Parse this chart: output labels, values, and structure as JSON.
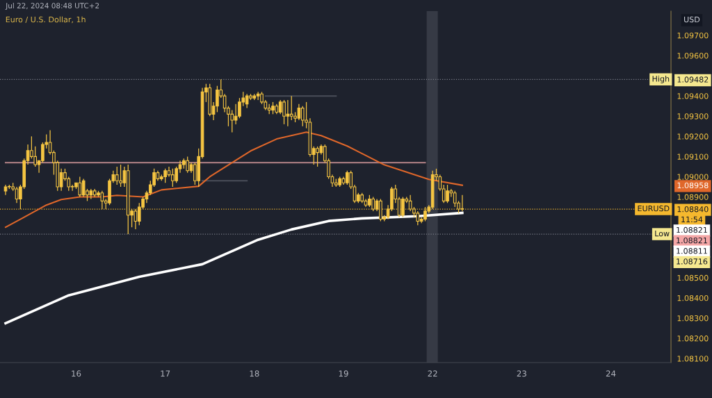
{
  "chart_data": {
    "type": "candlestick",
    "title": "Euro / U.S. Dollar, 1h",
    "subtitle": "Jul 22, 2024 08:48 UTC+2",
    "ylabel": "USD",
    "color": "#f5c542",
    "categories": [
      null,
      null,
      null,
      null,
      null,
      null,
      null,
      null,
      null,
      null,
      null,
      null,
      null,
      null,
      null,
      null,
      null,
      null,
      null,
      "16",
      null,
      null,
      null,
      null,
      null,
      null,
      null,
      null,
      null,
      null,
      null,
      null,
      null,
      null,
      null,
      null,
      null,
      null,
      null,
      null,
      null,
      null,
      null,
      "17",
      null,
      null,
      null,
      null,
      null,
      null,
      null,
      null,
      null,
      null,
      null,
      null,
      null,
      null,
      null,
      null,
      null,
      null,
      null,
      null,
      null,
      null,
      null,
      "18",
      null,
      null,
      null,
      null,
      null,
      null,
      null,
      null,
      null,
      null,
      null,
      null,
      null,
      null,
      null,
      null,
      null,
      null,
      null,
      null,
      null,
      null,
      null,
      "19",
      null,
      null,
      null,
      null,
      null,
      null,
      null,
      null,
      null,
      null,
      null,
      null,
      null,
      null,
      null,
      null,
      null,
      null,
      null,
      null,
      null,
      null,
      null,
      "22",
      null,
      null,
      null,
      null,
      null,
      null,
      null,
      null,
      null,
      null,
      null,
      null,
      null,
      null,
      null,
      null,
      null,
      null,
      null,
      null,
      null,
      null,
      null,
      "23",
      null,
      null,
      null,
      null,
      null,
      null,
      null,
      null,
      null,
      null,
      null,
      null,
      null,
      null,
      null,
      null,
      null,
      null,
      null,
      null,
      null,
      null,
      null,
      "24",
      null,
      null,
      null,
      null,
      null,
      null,
      null,
      null,
      null,
      null,
      null,
      null,
      null,
      null,
      null,
      null
    ],
    "ohlc": [
      [
        1.0893,
        1.0896,
        1.0891,
        1.0895
      ],
      [
        1.0895,
        1.0896,
        1.0894,
        1.0895
      ],
      [
        1.0895,
        1.0897,
        1.0893,
        1.0894
      ],
      [
        1.0894,
        1.0895,
        1.0887,
        1.0889
      ],
      [
        1.0889,
        1.0896,
        1.0884,
        1.0895
      ],
      [
        1.0895,
        1.0909,
        1.0894,
        1.0908
      ],
      [
        1.0908,
        1.0916,
        1.0906,
        1.0913
      ],
      [
        1.0913,
        1.092,
        1.0909,
        1.091
      ],
      [
        1.091,
        1.0915,
        1.0905,
        1.0906
      ],
      [
        1.0906,
        1.0908,
        1.0902,
        1.0908
      ],
      [
        1.0908,
        1.0917,
        1.0907,
        1.0916
      ],
      [
        1.0916,
        1.0921,
        1.0914,
        1.0917
      ],
      [
        1.0917,
        1.0923,
        1.0911,
        1.0912
      ],
      [
        1.0912,
        1.0913,
        1.0901,
        1.0907
      ],
      [
        1.0907,
        1.0908,
        1.0893,
        1.0895
      ],
      [
        1.0895,
        1.0904,
        1.0893,
        1.0902
      ],
      [
        1.0902,
        1.0904,
        1.0898,
        1.0899
      ],
      [
        1.0899,
        1.09,
        1.0893,
        1.0895
      ],
      [
        1.0895,
        1.0896,
        1.0893,
        1.0895
      ],
      [
        1.0895,
        1.0897,
        1.0894,
        1.0897
      ],
      [
        1.0897,
        1.09,
        1.089,
        1.0891
      ],
      [
        1.0891,
        1.0899,
        1.089,
        1.0898
      ],
      [
        1.0893,
        1.0894,
        1.0888,
        1.0891
      ],
      [
        1.0891,
        1.0894,
        1.0889,
        1.0893
      ],
      [
        1.0893,
        1.0894,
        1.089,
        1.0891
      ],
      [
        1.0891,
        1.0893,
        1.089,
        1.0892
      ],
      [
        1.0892,
        1.0893,
        1.0884,
        1.0888
      ],
      [
        1.0888,
        1.0889,
        1.0884,
        1.0887
      ],
      [
        1.0887,
        1.0899,
        1.0886,
        1.0898
      ],
      [
        1.0898,
        1.0903,
        1.0897,
        1.0901
      ],
      [
        1.0901,
        1.0905,
        1.0896,
        1.0898
      ],
      [
        1.0898,
        1.0906,
        1.0895,
        1.0897
      ],
      [
        1.0897,
        1.0905,
        1.0895,
        1.0903
      ],
      [
        1.0903,
        1.0906,
        1.08716,
        1.0881
      ],
      [
        1.0881,
        1.0884,
        1.0875,
        1.0883
      ],
      [
        1.0883,
        1.0884,
        1.0874,
        1.0878
      ],
      [
        1.0878,
        1.0887,
        1.0876,
        1.0885
      ],
      [
        1.0885,
        1.089,
        1.0884,
        1.0889
      ],
      [
        1.0889,
        1.0893,
        1.0887,
        1.0892
      ],
      [
        1.0892,
        1.0898,
        1.0891,
        1.0896
      ],
      [
        1.0896,
        1.0904,
        1.0895,
        1.0902
      ],
      [
        1.0902,
        1.0903,
        1.0898,
        1.0899
      ],
      [
        1.0899,
        1.0901,
        1.0898,
        1.09
      ],
      [
        1.09,
        1.0904,
        1.0897,
        1.0903
      ],
      [
        1.0903,
        1.0905,
        1.09,
        1.0901
      ],
      [
        1.0901,
        1.0904,
        1.0895,
        1.0898
      ],
      [
        1.0898,
        1.0905,
        1.0897,
        1.0904
      ],
      [
        1.0904,
        1.0908,
        1.0902,
        1.0906
      ],
      [
        1.0906,
        1.0909,
        1.0904,
        1.0908
      ],
      [
        1.0908,
        1.091,
        1.0902,
        1.0903
      ],
      [
        1.0903,
        1.0907,
        1.0902,
        1.0906
      ],
      [
        1.0906,
        1.0907,
        1.0896,
        1.0898
      ],
      [
        1.0898,
        1.0914,
        1.0895,
        1.091
      ],
      [
        1.091,
        1.0944,
        1.0909,
        1.0942
      ],
      [
        1.0942,
        1.0946,
        1.0937,
        1.0944
      ],
      [
        1.0944,
        1.0946,
        1.093,
        1.0931
      ],
      [
        1.0931,
        1.0937,
        1.0928,
        1.0935
      ],
      [
        1.0935,
        1.0945,
        1.0932,
        1.0943
      ],
      [
        1.0943,
        1.09482,
        1.0939,
        1.094
      ],
      [
        1.094,
        1.0941,
        1.0932,
        1.0934
      ],
      [
        1.0934,
        1.0935,
        1.0925,
        1.0931
      ],
      [
        1.0931,
        1.0933,
        1.0922,
        1.0928
      ],
      [
        1.0928,
        1.0936,
        1.0926,
        1.093
      ],
      [
        1.093,
        1.0939,
        1.0929,
        1.0937
      ],
      [
        1.0937,
        1.0942,
        1.0935,
        1.0939
      ],
      [
        1.0936,
        1.0941,
        1.0934,
        1.094
      ],
      [
        1.094,
        1.0941,
        1.0938,
        1.0939
      ],
      [
        1.0939,
        1.0941,
        1.0938,
        1.094
      ],
      [
        1.094,
        1.0942,
        1.0938,
        1.0941
      ],
      [
        1.0941,
        1.0942,
        1.0936,
        1.0937
      ],
      [
        1.0937,
        1.0938,
        1.0933,
        1.0934
      ],
      [
        1.0934,
        1.0936,
        1.0931,
        1.0933
      ],
      [
        1.0933,
        1.0937,
        1.0931,
        1.0935
      ],
      [
        1.0935,
        1.0936,
        1.0931,
        1.0932
      ],
      [
        1.0932,
        1.0938,
        1.0931,
        1.0937
      ],
      [
        1.0937,
        1.0938,
        1.0926,
        1.093
      ],
      [
        1.093,
        1.0938,
        1.0925,
        1.0931
      ],
      [
        1.0931,
        1.094,
        1.0928,
        1.093
      ],
      [
        1.093,
        1.0932,
        1.0927,
        1.0929
      ],
      [
        1.0929,
        1.0936,
        1.0928,
        1.0934
      ],
      [
        1.0934,
        1.0935,
        1.0925,
        1.0928
      ],
      [
        1.0928,
        1.0937,
        1.0924,
        1.0927
      ],
      [
        1.0927,
        1.0929,
        1.091,
        1.0911
      ],
      [
        1.0911,
        1.0915,
        1.0906,
        1.0914
      ],
      [
        1.0914,
        1.0915,
        1.0905,
        1.0912
      ],
      [
        1.0912,
        1.0916,
        1.0911,
        1.0915
      ],
      [
        1.0915,
        1.0916,
        1.0907,
        1.0908
      ],
      [
        1.0908,
        1.0909,
        1.0899,
        1.09
      ],
      [
        1.09,
        1.0901,
        1.0895,
        1.0897
      ],
      [
        1.0897,
        1.0899,
        1.0895,
        1.0896
      ],
      [
        1.0896,
        1.09,
        1.0895,
        1.0899
      ],
      [
        1.0899,
        1.09,
        1.0896,
        1.0897
      ],
      [
        1.0897,
        1.0903,
        1.0896,
        1.0902
      ],
      [
        1.0902,
        1.0903,
        1.0894,
        1.0895
      ],
      [
        1.0895,
        1.0896,
        1.0887,
        1.0888
      ],
      [
        1.0888,
        1.0892,
        1.0887,
        1.0891
      ],
      [
        1.0891,
        1.0892,
        1.0887,
        1.0888
      ],
      [
        1.0888,
        1.0889,
        1.0885,
        1.0886
      ],
      [
        1.0886,
        1.0891,
        1.0885,
        1.0889
      ],
      [
        1.0889,
        1.089,
        1.0883,
        1.0884
      ],
      [
        1.0884,
        1.0889,
        1.0883,
        1.0888
      ],
      [
        1.0888,
        1.0889,
        1.0878,
        1.0879
      ],
      [
        1.0879,
        1.0881,
        1.0878,
        1.088
      ],
      [
        1.088,
        1.0886,
        1.0879,
        1.0884
      ],
      [
        1.0884,
        1.0895,
        1.0883,
        1.0894
      ],
      [
        1.0894,
        1.0896,
        1.0887,
        1.0889
      ],
      [
        1.0889,
        1.089,
        1.088,
        1.0881
      ],
      [
        1.0881,
        1.089,
        1.088,
        1.0889
      ],
      [
        1.0889,
        1.089,
        1.0887,
        1.0888
      ],
      [
        1.0888,
        1.0891,
        1.0883,
        1.0884
      ],
      [
        1.0884,
        1.0885,
        1.088,
        1.0882
      ],
      [
        1.0882,
        1.0883,
        1.0876,
        1.0878
      ],
      [
        1.0878,
        1.088,
        1.0877,
        1.0879
      ],
      [
        1.0879,
        1.0885,
        1.0878,
        1.0883
      ],
      [
        1.0883,
        1.0886,
        1.0882,
        1.0885
      ],
      [
        1.0885,
        1.0903,
        1.0884,
        1.0901
      ],
      [
        1.0901,
        1.0904,
        1.0898,
        1.09
      ],
      [
        1.09,
        1.0901,
        1.0893,
        1.0894
      ],
      [
        1.0894,
        1.0896,
        1.0887,
        1.0888
      ],
      [
        1.0888,
        1.0896,
        1.0887,
        1.0893
      ],
      [
        1.0893,
        1.0894,
        1.089,
        1.0892
      ],
      [
        1.0892,
        1.0893,
        1.0885,
        1.0887
      ],
      [
        1.0887,
        1.0888,
        1.0882,
        1.0884
      ],
      [
        1.0884,
        1.0891,
        1.0883,
        1.0884
      ],
      null,
      null,
      null,
      null,
      null,
      null,
      null,
      null,
      null,
      null,
      null,
      null,
      null,
      null,
      null,
      null,
      null,
      null,
      null,
      null,
      null,
      null,
      null,
      null,
      null,
      null,
      null,
      null,
      null,
      null,
      null,
      null,
      null,
      null,
      null,
      null,
      null,
      null,
      null,
      null,
      null,
      null,
      null,
      null,
      null,
      null,
      null,
      null,
      null,
      null,
      null,
      null,
      null,
      null,
      null,
      null
    ],
    "series": [
      {
        "type": "line",
        "color": "#a3787d",
        "values": [
          1.0907,
          null,
          null,
          null,
          null,
          null,
          null,
          null,
          null,
          null,
          null,
          null,
          null,
          null,
          null,
          null,
          null,
          null,
          null,
          null,
          null,
          null,
          null,
          null,
          null,
          null,
          null,
          null,
          null,
          null,
          null,
          null,
          null,
          null,
          null,
          null,
          null,
          null,
          null,
          null,
          null,
          null,
          null,
          null,
          null,
          null,
          null,
          null,
          null,
          null,
          null,
          null,
          null,
          null,
          null,
          null,
          null,
          null,
          null,
          null,
          null,
          null,
          null,
          null,
          null,
          null,
          null,
          null,
          null,
          null,
          null,
          null,
          null,
          null,
          null,
          null,
          null,
          null,
          null,
          null,
          null,
          null,
          null,
          null,
          null,
          null,
          null,
          null,
          null,
          null,
          null,
          null,
          null,
          null,
          null,
          null,
          null,
          null,
          null,
          null,
          null,
          null,
          null,
          null,
          null,
          null,
          null,
          null,
          null,
          null,
          null,
          null,
          null,
          1.0907,
          null,
          null,
          null,
          null,
          null,
          null,
          null,
          null,
          null,
          null,
          null,
          null,
          null,
          null,
          null,
          null,
          null,
          null,
          null,
          null,
          null,
          null,
          null,
          null,
          null,
          null,
          null,
          null,
          null,
          null,
          null,
          null,
          null,
          null,
          null,
          null,
          null,
          null,
          null,
          null,
          null,
          null,
          null,
          null,
          null,
          null,
          null,
          null,
          null,
          null,
          null,
          null,
          null,
          null,
          null,
          null,
          null,
          null,
          null,
          null,
          null,
          null,
          null,
          null,
          null,
          null
        ]
      },
      {
        "type": "line",
        "color": "#4a4e59",
        "values": [
          null,
          null,
          null,
          null,
          null,
          null,
          null,
          null,
          null,
          null,
          null,
          null,
          null,
          null,
          null,
          null,
          null,
          null,
          null,
          null,
          null,
          null,
          null,
          null,
          null,
          null,
          null,
          null,
          null,
          null,
          null,
          null,
          null,
          null,
          null,
          null,
          null,
          null,
          null,
          null,
          null,
          null,
          null,
          null,
          null,
          null,
          null,
          null,
          null,
          null,
          null,
          null,
          null,
          null,
          null,
          null,
          null,
          null,
          null,
          null,
          null,
          null,
          null,
          null,
          null,
          null,
          null,
          null,
          null,
          null,
          1.094,
          null,
          null,
          null,
          null,
          null,
          null,
          null,
          null,
          null,
          null,
          null,
          null,
          null,
          null,
          null,
          null,
          null,
          null,
          1.094,
          null,
          null,
          null,
          null,
          null,
          null,
          null,
          null,
          null,
          null,
          null,
          null,
          null,
          null,
          null,
          null,
          null,
          null,
          null,
          null,
          null,
          null,
          null,
          null,
          null,
          null,
          null,
          null,
          null,
          null,
          null,
          null,
          null,
          null,
          null,
          null,
          null,
          null,
          null,
          null,
          null,
          null,
          null,
          null,
          null,
          null,
          null,
          null,
          null,
          null,
          null,
          null,
          null,
          null,
          null,
          null,
          null,
          null,
          null,
          null,
          null,
          null,
          null,
          null,
          null,
          null,
          null,
          null,
          null,
          null,
          null,
          null,
          null,
          null,
          null,
          null,
          null,
          null,
          null,
          null,
          null,
          null,
          null,
          null,
          null,
          null,
          null,
          null,
          null,
          null
        ]
      },
      {
        "type": "line",
        "color": "#4a4e59",
        "values": [
          null,
          null,
          null,
          null,
          null,
          null,
          null,
          null,
          null,
          null,
          null,
          null,
          null,
          null,
          null,
          null,
          null,
          null,
          null,
          null,
          null,
          null,
          null,
          null,
          null,
          null,
          null,
          null,
          null,
          null,
          null,
          null,
          null,
          null,
          null,
          null,
          null,
          null,
          null,
          null,
          null,
          null,
          null,
          null,
          null,
          null,
          null,
          null,
          null,
          null,
          null,
          null,
          null,
          1.0898,
          null,
          null,
          null,
          null,
          null,
          null,
          null,
          null,
          null,
          null,
          null,
          1.0898,
          null,
          null,
          null,
          null,
          null,
          null,
          null,
          null,
          null,
          null,
          null,
          null,
          null,
          null,
          null,
          null,
          null,
          null,
          null,
          null,
          null,
          null,
          null,
          null,
          null,
          null,
          null,
          null,
          null,
          null,
          null,
          null,
          null,
          null,
          null,
          null,
          null,
          null,
          null,
          null,
          null,
          null,
          null,
          null,
          null,
          null,
          null,
          null,
          null,
          null,
          null,
          null,
          null,
          null,
          null,
          null,
          null,
          null,
          null,
          null,
          null,
          null,
          null,
          null,
          null,
          null,
          null,
          null,
          null,
          null,
          null,
          null,
          null,
          null,
          null,
          null,
          null,
          null,
          null,
          null,
          null,
          null,
          null,
          null,
          null,
          null,
          null,
          null,
          null,
          null,
          null,
          null,
          null,
          null,
          null,
          null,
          null,
          null,
          null,
          null,
          null,
          null,
          null,
          null,
          null,
          null,
          null,
          null,
          null,
          null,
          null,
          null,
          null,
          null
        ]
      },
      {
        "type": "line",
        "color": "#e0672a",
        "values": [
          1.0875,
          null,
          null,
          null,
          1.0879,
          null,
          null,
          null,
          null,
          null,
          null,
          1.0886,
          null,
          null,
          null,
          1.08887,
          null,
          null,
          null,
          null,
          1.089,
          null,
          null,
          null,
          null,
          null,
          1.089,
          null,
          null,
          null,
          1.08908,
          null,
          null,
          null,
          null,
          null,
          null,
          1.089,
          null,
          null,
          null,
          null,
          1.08935,
          null,
          null,
          null,
          null,
          null,
          null,
          null,
          null,
          null,
          1.08953,
          null,
          null,
          1.09,
          null,
          null,
          null,
          null,
          null,
          1.0907,
          null,
          null,
          null,
          null,
          1.09128,
          null,
          null,
          null,
          null,
          null,
          null,
          1.09187,
          null,
          null,
          null,
          null,
          null,
          null,
          null,
          1.09221,
          null,
          null,
          null,
          1.09204,
          null,
          null,
          null,
          null,
          null,
          null,
          1.09152,
          null,
          null,
          null,
          null,
          null,
          null,
          null,
          null,
          null,
          1.09059,
          null,
          null,
          null,
          null,
          null,
          null,
          null,
          null,
          null,
          null,
          null,
          1.08987,
          null,
          null,
          null,
          null,
          null,
          null,
          null,
          null,
          1.08958,
          null,
          null,
          null,
          null,
          null,
          null,
          null,
          null,
          null,
          null,
          null,
          null,
          null,
          null,
          null,
          null,
          null,
          null,
          null,
          null,
          null,
          null,
          null,
          null,
          null,
          null,
          null,
          null,
          null,
          null,
          null,
          null,
          null,
          null,
          null,
          null,
          null,
          null,
          null,
          null,
          null,
          null,
          null,
          null,
          null,
          null,
          null,
          null,
          null,
          null,
          null,
          null,
          null,
          null,
          null,
          null
        ]
      },
      {
        "type": "line",
        "color": "#ffffff",
        "values": [
          1.08275,
          null,
          null,
          null,
          null,
          null,
          null,
          null,
          null,
          null,
          null,
          null,
          null,
          null,
          null,
          null,
          null,
          1.08413,
          null,
          null,
          null,
          null,
          null,
          null,
          null,
          null,
          null,
          null,
          null,
          null,
          null,
          null,
          null,
          null,
          null,
          null,
          1.08505,
          null,
          null,
          null,
          null,
          null,
          null,
          null,
          null,
          null,
          null,
          null,
          null,
          null,
          null,
          null,
          null,
          1.08567,
          null,
          null,
          null,
          null,
          null,
          null,
          null,
          null,
          null,
          null,
          null,
          null,
          null,
          null,
          1.08688,
          null,
          null,
          null,
          null,
          null,
          null,
          null,
          null,
          1.08739,
          null,
          null,
          null,
          null,
          null,
          null,
          null,
          null,
          null,
          1.08781,
          null,
          null,
          null,
          null,
          null,
          null,
          null,
          null,
          1.08794,
          null,
          null,
          null,
          null,
          null,
          null,
          null,
          null,
          null,
          null,
          null,
          null,
          null,
          null,
          1.08805,
          null,
          null,
          null,
          null,
          null,
          null,
          null,
          null,
          null,
          null,
          null,
          1.08821,
          null,
          null,
          null,
          null,
          null,
          null,
          null,
          null,
          null,
          null,
          null,
          null,
          null,
          null,
          null,
          null,
          null,
          null,
          null,
          null,
          null,
          null,
          null,
          null,
          null,
          null,
          null,
          null,
          null,
          null,
          null,
          null,
          null,
          null,
          null,
          null,
          null,
          null,
          null,
          null,
          null,
          null,
          null,
          null,
          null,
          null,
          null,
          null,
          null,
          null,
          null,
          null,
          null,
          null,
          null,
          null
        ]
      }
    ],
    "ref_lines": [
      {
        "axis": "y",
        "value": 1.09482,
        "label": "High",
        "color": "#787b86",
        "line_style": "dotted"
      },
      {
        "axis": "y",
        "value": 1.0884,
        "label": "EURUSD",
        "color": "#f5b82e",
        "line_style": "dotted"
      },
      {
        "axis": "y",
        "value": 1.08716,
        "label": "Low",
        "color": "#787b86",
        "line_style": "dotted"
      }
    ],
    "bands": [
      {
        "axis": "x",
        "from": "22",
        "to": "22",
        "color": "#363a45"
      }
    ],
    "annotations": [
      "11:54",
      "1.08821",
      "1.08821",
      "1.08811",
      "1.08716"
    ],
    "ylim": [
      1.0808,
      1.0982
    ],
    "yticks": [
      {
        "value": 1.097,
        "label": "1.09700"
      },
      {
        "value": 1.096,
        "label": "1.09600"
      },
      {
        "value": 1.09482,
        "label": "1.09482"
      },
      {
        "value": 1.094,
        "label": "1.09400"
      },
      {
        "value": 1.093,
        "label": "1.09300"
      },
      {
        "value": 1.092,
        "label": "1.09200"
      },
      {
        "value": 1.091,
        "label": "1.09100"
      },
      {
        "value": 1.09,
        "label": "1.09000"
      },
      {
        "value": 1.08958,
        "label": "1.08958"
      },
      {
        "value": 1.089,
        "label": "1.08900"
      },
      {
        "value": 1.0884,
        "label": "1.08840"
      },
      {
        "value": 1.085,
        "label": "1.08500"
      },
      {
        "value": 1.084,
        "label": "1.08400"
      },
      {
        "value": 1.083,
        "label": "1.08300"
      },
      {
        "value": 1.082,
        "label": "1.08200"
      },
      {
        "value": 1.081,
        "label": "1.08100"
      }
    ],
    "legend": false,
    "marker": "none"
  }
}
